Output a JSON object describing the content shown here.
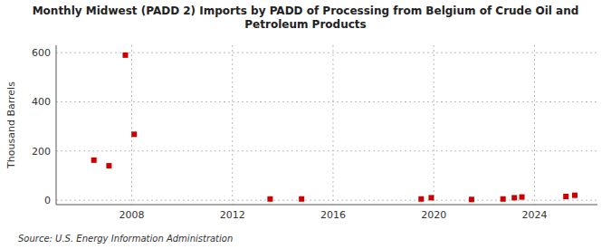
{
  "chart_data": {
    "type": "scatter",
    "title": "Monthly Midwest (PADD 2) Imports by PADD of Processing from Belgium of Crude Oil and\nPetroleum Products",
    "ylabel": "Thousand Barrels",
    "annotations": [
      "Source: U.S. Energy Information Administration"
    ],
    "color": "#cc0000",
    "marker": "square",
    "grid": true,
    "xlim": [
      2005.0,
      2026.5
    ],
    "ylim": [
      -18,
      630
    ],
    "xticks": [
      2008,
      2012,
      2016,
      2020,
      2024
    ],
    "yticks": [
      0,
      200,
      400,
      600
    ],
    "x": [
      2006.5,
      2007.1,
      2007.75,
      2008.1,
      2013.5,
      2014.75,
      2019.5,
      2019.9,
      2021.5,
      2022.75,
      2023.2,
      2023.5,
      2025.25,
      2025.6
    ],
    "values": [
      163,
      140,
      590,
      268,
      5,
      5,
      5,
      10,
      3,
      5,
      10,
      13,
      15,
      20
    ]
  }
}
